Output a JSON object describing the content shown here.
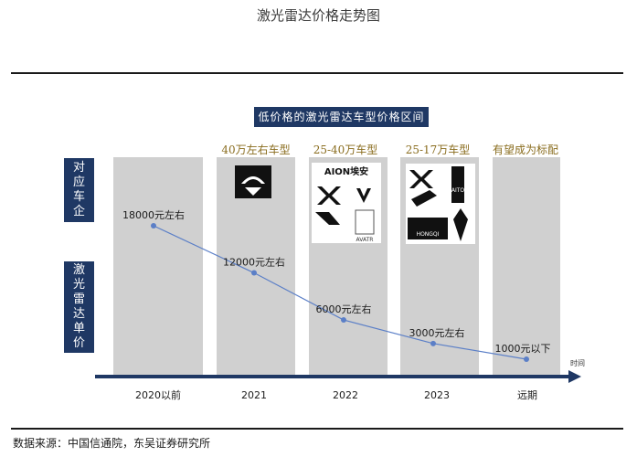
{
  "page_title": "激光雷达价格走势图",
  "header_box": "低价格的激光雷达车型价格区间",
  "row_labels": {
    "companies": "对应车企",
    "unit_price": "激光雷达单价"
  },
  "source": "数据来源：中国信通院，东吴证券研究所",
  "logos": {
    "nio": "nio-logo",
    "aion": "AION埃安",
    "avatr": "AVATR",
    "hongqi": "HONGQI",
    "aito": "AITO"
  },
  "colors": {
    "panel": "#d0d0d0",
    "navy": "#1f3864",
    "gold": "#8a6d1f",
    "line": "#5b7fc7"
  },
  "chart_data": {
    "type": "line",
    "categories": [
      "2020以前",
      "2021",
      "2022",
      "2023",
      "远期"
    ],
    "column_headers": [
      "",
      "40万左右车型",
      "25-40万车型",
      "25-17万车型",
      "有望成为标配"
    ],
    "data_labels": [
      "18000元左右",
      "12000元左右",
      "6000元左右",
      "3000元左右",
      "1000元以下"
    ],
    "values": [
      18000,
      12000,
      6000,
      3000,
      1000
    ],
    "xlabel": "时间",
    "ylabel": "",
    "grid": false
  }
}
